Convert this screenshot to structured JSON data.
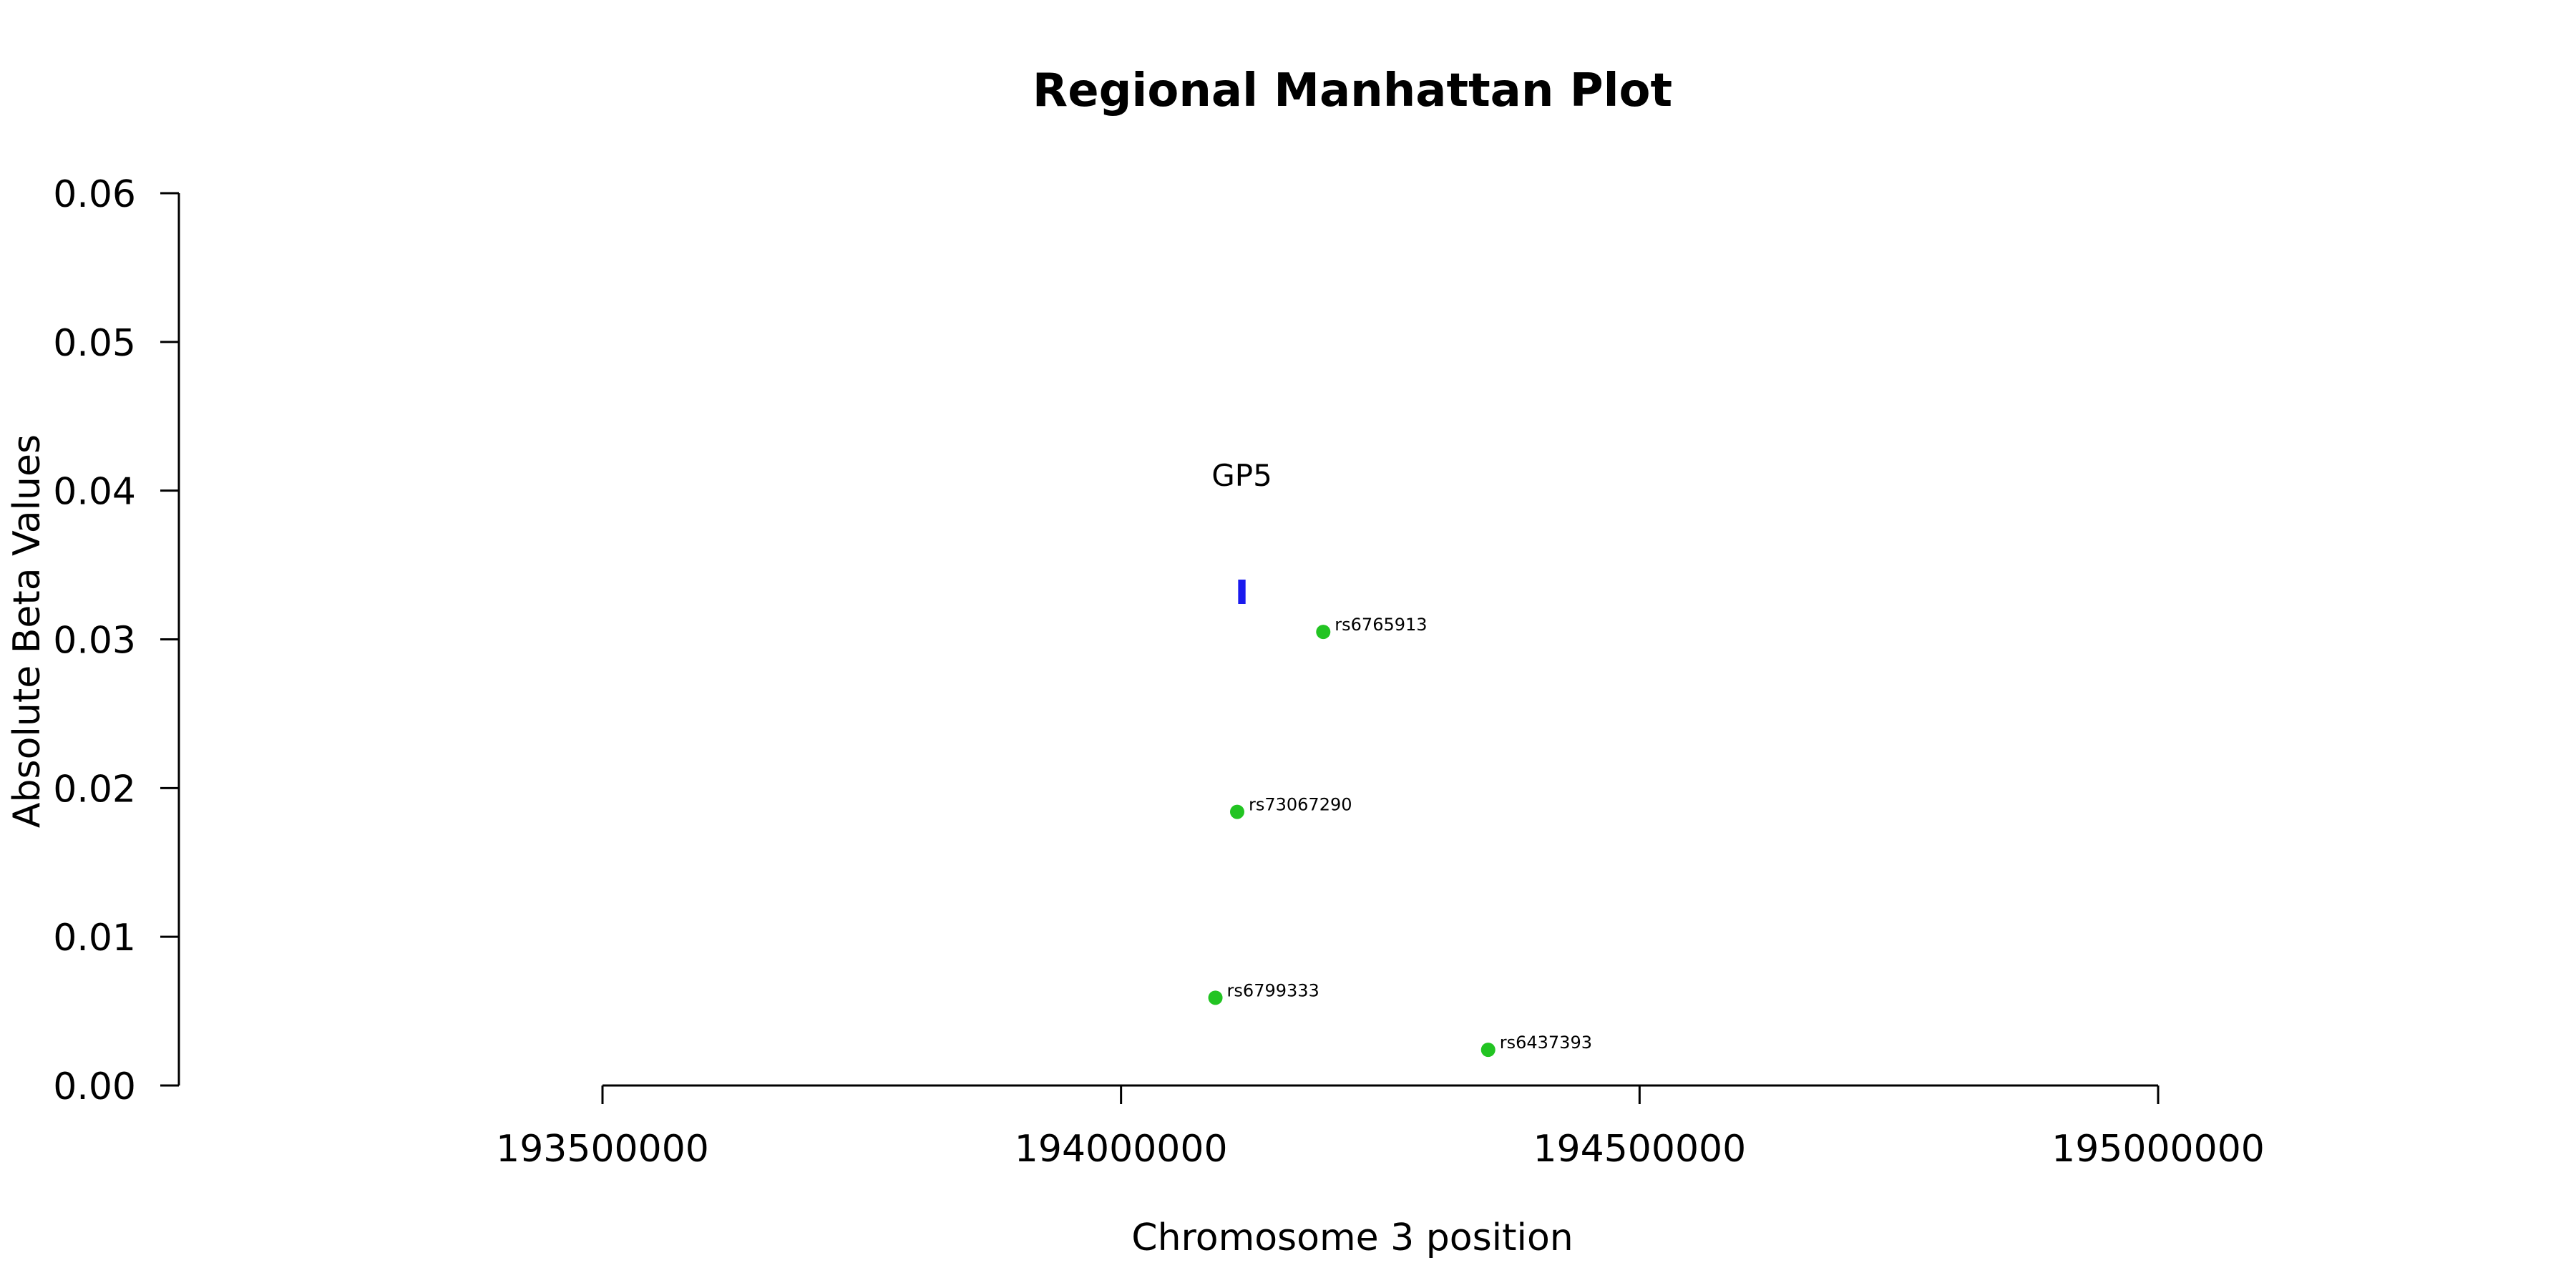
{
  "chart_data": {
    "type": "scatter",
    "title": "Regional Manhattan Plot",
    "xlabel": "Chromosome 3 position",
    "ylabel": "Absolute Beta Values",
    "xlim": [
      193500000,
      195000000
    ],
    "ylim": [
      0,
      0.06
    ],
    "x_ticks": [
      193500000,
      194000000,
      194500000,
      195000000
    ],
    "y_ticks": [
      0.0,
      0.01,
      0.02,
      0.03,
      0.04,
      0.05,
      0.06
    ],
    "y_tick_labels": [
      "0.00",
      "0.01",
      "0.02",
      "0.03",
      "0.04",
      "0.05",
      "0.06"
    ],
    "x_tick_labels": [
      "193500000",
      "194000000",
      "194500000",
      "195000000"
    ],
    "grid": false,
    "point_color": "#22c422",
    "points": [
      {
        "label": "rs6765913",
        "x": 194195000,
        "y": 0.0305
      },
      {
        "label": "rs73067290",
        "x": 194112000,
        "y": 0.0184
      },
      {
        "label": "rs6799333",
        "x": 194091000,
        "y": 0.0059
      },
      {
        "label": "rs6437393",
        "x": 194354000,
        "y": 0.0024
      }
    ],
    "genes": [
      {
        "name": "GP5",
        "start": 194115000,
        "end": 194118000,
        "y": 0.0332,
        "color": "#1a1aee"
      }
    ]
  }
}
